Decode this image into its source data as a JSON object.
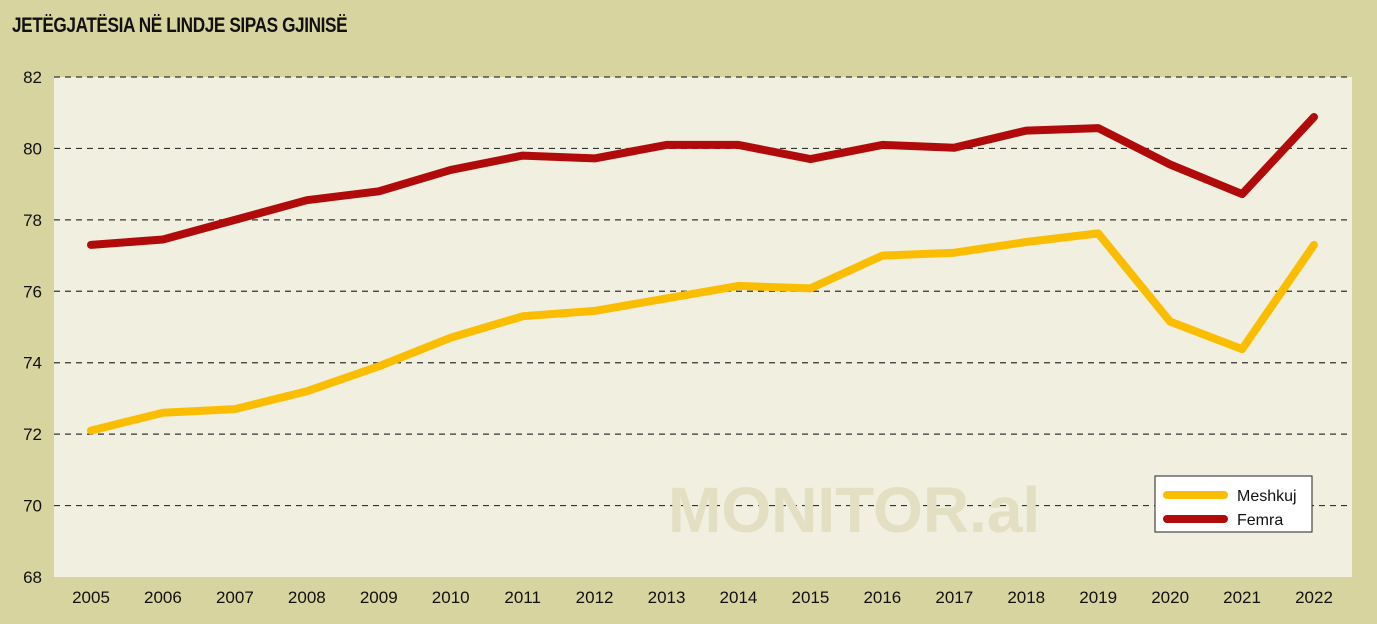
{
  "chart_data": {
    "type": "line",
    "title": "JETËGJATËSIA NË LINDJE SIPAS GJINISË",
    "xlabel": "",
    "ylabel": "",
    "categories": [
      "2005",
      "2006",
      "2007",
      "2008",
      "2009",
      "2010",
      "2011",
      "2012",
      "2013",
      "2014",
      "2015",
      "2016",
      "2017",
      "2018",
      "2019",
      "2020",
      "2021",
      "2022"
    ],
    "ylim": [
      68,
      82
    ],
    "yticks": [
      68,
      70,
      72,
      74,
      76,
      78,
      80,
      82
    ],
    "grid": "horizontal dashed",
    "legend_position": "bottom-right",
    "series": [
      {
        "name": "Meshkuj",
        "color": "#fbbd00",
        "values": [
          72.1,
          72.6,
          72.7,
          73.2,
          73.9,
          74.7,
          75.3,
          75.45,
          75.8,
          76.15,
          76.08,
          77.0,
          77.08,
          77.38,
          77.62,
          75.15,
          74.38,
          77.3
        ]
      },
      {
        "name": "Femra",
        "color": "#b10a0a",
        "values": [
          77.3,
          77.45,
          78.0,
          78.55,
          78.8,
          79.4,
          79.8,
          79.72,
          80.1,
          80.1,
          79.7,
          80.1,
          80.02,
          80.5,
          80.57,
          79.55,
          78.72,
          80.88
        ]
      }
    ]
  },
  "watermark": "MONITOR.al",
  "colors": {
    "page_background": "#d8d4a0",
    "plot_background": "#f0efe0",
    "grid": "#333333"
  }
}
